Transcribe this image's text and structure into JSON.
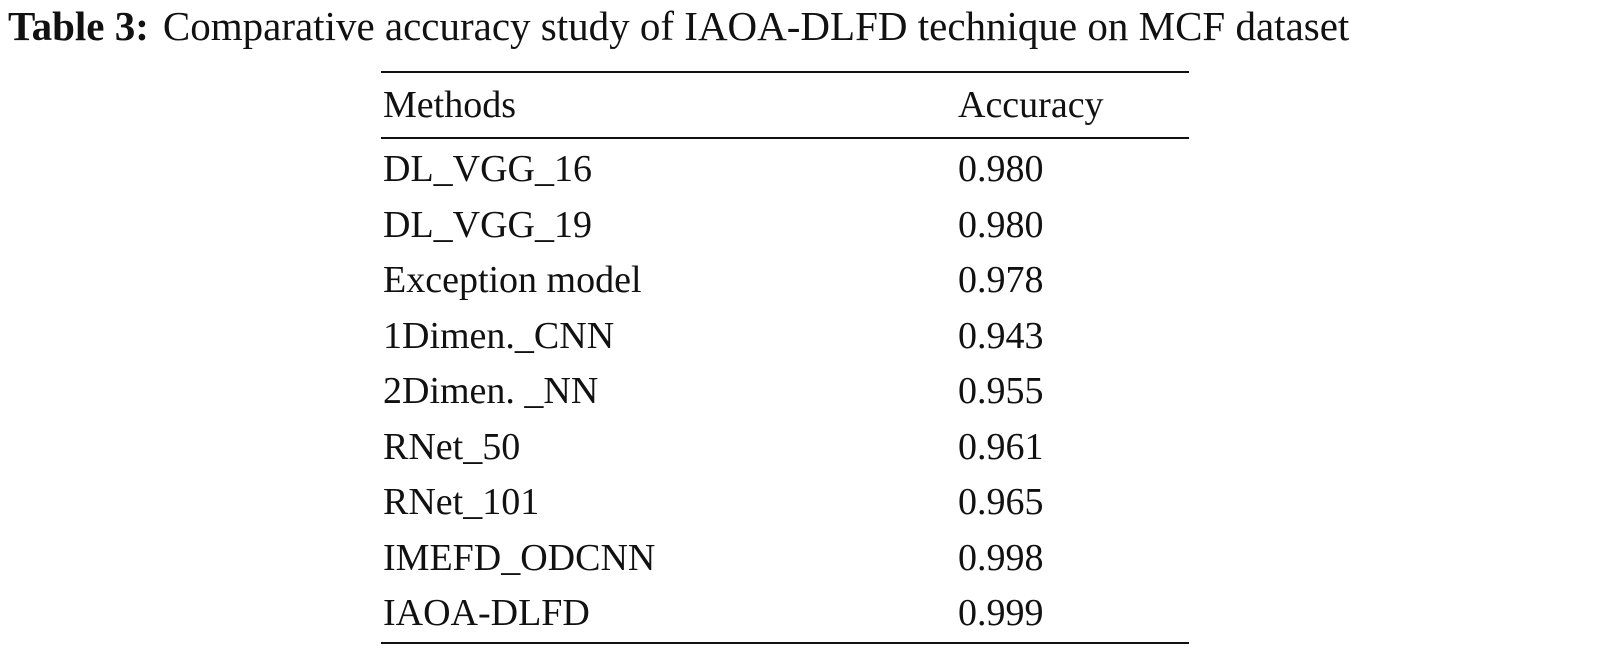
{
  "caption": {
    "label": "Table 3:",
    "text": "Comparative accuracy study of IAOA-DLFD technique on MCF dataset"
  },
  "table": {
    "headers": {
      "method": "Methods",
      "accuracy": "Accuracy"
    },
    "rows": [
      {
        "method": "DL_VGG_16",
        "accuracy": "0.980"
      },
      {
        "method": "DL_VGG_19",
        "accuracy": "0.980"
      },
      {
        "method": "Exception model",
        "accuracy": "0.978"
      },
      {
        "method": "1Dimen._CNN",
        "accuracy": "0.943"
      },
      {
        "method": "2Dimen. _NN",
        "accuracy": "0.955"
      },
      {
        "method": "RNet_50",
        "accuracy": "0.961"
      },
      {
        "method": "RNet_101",
        "accuracy": "0.965"
      },
      {
        "method": "IMEFD_ODCNN",
        "accuracy": "0.998"
      },
      {
        "method": "IAOA-DLFD",
        "accuracy": "0.999"
      }
    ]
  }
}
